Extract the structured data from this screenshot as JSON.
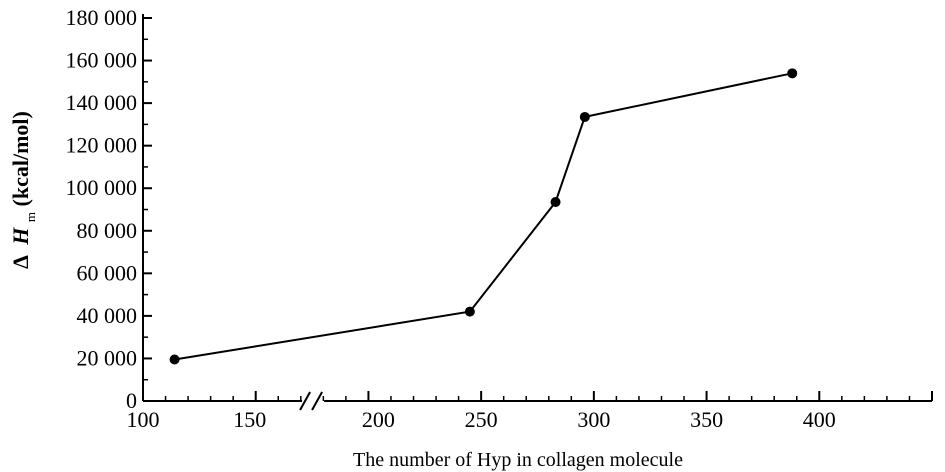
{
  "chart_data": {
    "type": "line",
    "title": "",
    "xlabel": "The number of Hyp in collagen molecule",
    "ylabel_prefix": "Δ",
    "ylabel_var": "H",
    "ylabel_sub": "m",
    "ylabel_unit": "(kcal/mol)",
    "xlim": [
      100,
      450
    ],
    "ylim": [
      0,
      180000
    ],
    "x_axis_break": "between 150 and 200",
    "x_ticks": [
      {
        "value": 100,
        "label": "100"
      },
      {
        "value": 150,
        "label": "150"
      },
      {
        "value": 200,
        "label": "200"
      },
      {
        "value": 250,
        "label": "250"
      },
      {
        "value": 300,
        "label": "300"
      },
      {
        "value": 350,
        "label": "350"
      },
      {
        "value": 400,
        "label": "400"
      }
    ],
    "y_ticks": [
      {
        "value": 0,
        "label": "0"
      },
      {
        "value": 20000,
        "label": "20 000"
      },
      {
        "value": 40000,
        "label": "40 000"
      },
      {
        "value": 60000,
        "label": "60 000"
      },
      {
        "value": 80000,
        "label": "80 000"
      },
      {
        "value": 100000,
        "label": "100 000"
      },
      {
        "value": 120000,
        "label": "120 000"
      },
      {
        "value": 140000,
        "label": "140 000"
      },
      {
        "value": 160000,
        "label": "160 000"
      },
      {
        "value": 180000,
        "label": "180 000"
      }
    ],
    "series": [
      {
        "x": [
          114,
          245,
          283,
          296,
          388
        ],
        "y": [
          19500,
          42000,
          93500,
          133500,
          154000
        ]
      }
    ],
    "grid": false,
    "legend": "none"
  }
}
